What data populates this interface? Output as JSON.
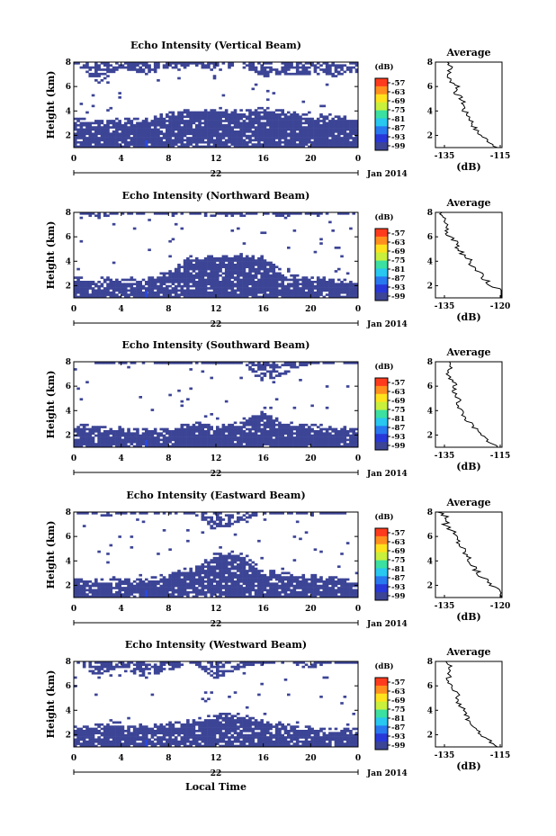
{
  "chart_data": {
    "type": "heatmap",
    "xlabel": "Local Time",
    "date_label": "Jan 2014",
    "day_label": "22",
    "x_ticks": [
      "0",
      "4",
      "8",
      "12",
      "16",
      "20",
      "0"
    ],
    "y_ticks": [
      "2",
      "4",
      "6",
      "8"
    ],
    "ylabel": "Height (km)",
    "ylim": [
      1,
      8
    ],
    "xlim": [
      0,
      24
    ],
    "colorbar": {
      "unit": "(dB)",
      "labels": [
        "-57",
        "-63",
        "-69",
        "-75",
        "-81",
        "-87",
        "-93",
        "-99"
      ],
      "colors": [
        "#ff3b1e",
        "#ff8f1e",
        "#ffe21e",
        "#c8f03c",
        "#3ce0a0",
        "#28c8f0",
        "#2878f0",
        "#2838d8",
        "#3c4496"
      ]
    },
    "panels": [
      {
        "title": "Echo Intensity (Vertical Beam)",
        "cloud": [
          [
            0,
            3.2
          ],
          [
            2,
            3.0
          ],
          [
            4,
            3.1
          ],
          [
            6,
            3.1
          ],
          [
            8,
            3.6
          ],
          [
            10,
            3.9
          ],
          [
            12,
            4.0
          ],
          [
            14,
            3.8
          ],
          [
            16,
            4.0
          ],
          [
            18,
            3.8
          ],
          [
            20,
            3.4
          ],
          [
            22,
            3.3
          ],
          [
            24,
            3.2
          ]
        ],
        "upper": [
          [
            0,
            8
          ],
          [
            2,
            6.2
          ],
          [
            4,
            7.5
          ],
          [
            6,
            7.0
          ],
          [
            8,
            7.4
          ],
          [
            10,
            7.8
          ],
          [
            12,
            7.2
          ],
          [
            14,
            7.8
          ],
          [
            16,
            6.8
          ],
          [
            18,
            7.0
          ],
          [
            20,
            7.0
          ],
          [
            22,
            6.8
          ],
          [
            24,
            7.2
          ]
        ],
        "average": {
          "title": "Average",
          "xlabel": "(dB)",
          "ticks": [
            "-135",
            "-115"
          ],
          "profile": [
            [
              8,
              -134
            ],
            [
              7.6,
              -132
            ],
            [
              7,
              -134
            ],
            [
              6.5,
              -133
            ],
            [
              6,
              -130
            ],
            [
              5.5,
              -131
            ],
            [
              5,
              -129
            ],
            [
              4.5,
              -128
            ],
            [
              4,
              -128
            ],
            [
              3.5,
              -126
            ],
            [
              3,
              -125
            ],
            [
              2.5,
              -124
            ],
            [
              2,
              -122
            ],
            [
              1.5,
              -119
            ],
            [
              1,
              -116
            ]
          ]
        }
      },
      {
        "title": "Echo Intensity (Northward Beam)",
        "cloud": [
          [
            0,
            2.5
          ],
          [
            2,
            2.2
          ],
          [
            4,
            2.3
          ],
          [
            6,
            2.3
          ],
          [
            8,
            3.0
          ],
          [
            10,
            4.2
          ],
          [
            12,
            4.3
          ],
          [
            14,
            4.3
          ],
          [
            16,
            4.2
          ],
          [
            18,
            2.6
          ],
          [
            20,
            2.5
          ],
          [
            22,
            2.3
          ],
          [
            24,
            2.2
          ]
        ],
        "upper": [
          [
            0,
            8
          ],
          [
            2,
            7.6
          ],
          [
            4,
            7.9
          ],
          [
            6,
            7.9
          ],
          [
            8,
            7.9
          ],
          [
            10,
            7.9
          ],
          [
            12,
            7.6
          ],
          [
            14,
            7.6
          ],
          [
            16,
            7.9
          ],
          [
            18,
            7.6
          ],
          [
            20,
            7.9
          ],
          [
            22,
            7.9
          ],
          [
            24,
            7.9
          ]
        ],
        "average": {
          "title": "Average",
          "xlabel": "(dB)",
          "ticks": [
            "-135",
            "-120"
          ],
          "profile": [
            [
              8,
              -136
            ],
            [
              7.5,
              -135
            ],
            [
              7,
              -134
            ],
            [
              6.5,
              -135
            ],
            [
              6,
              -133
            ],
            [
              5.5,
              -132
            ],
            [
              5,
              -131
            ],
            [
              4.5,
              -130
            ],
            [
              4,
              -128
            ],
            [
              3.5,
              -127
            ],
            [
              3,
              -125
            ],
            [
              2.5,
              -124
            ],
            [
              2,
              -122
            ],
            [
              1.5,
              -119
            ],
            [
              1,
              -117
            ]
          ]
        }
      },
      {
        "title": "Echo Intensity (Southward Beam)",
        "cloud": [
          [
            0,
            2.6
          ],
          [
            2,
            2.5
          ],
          [
            4,
            2.4
          ],
          [
            6,
            2.2
          ],
          [
            8,
            2.3
          ],
          [
            10,
            2.8
          ],
          [
            12,
            2.6
          ],
          [
            14,
            2.8
          ],
          [
            16,
            3.8
          ],
          [
            18,
            2.8
          ],
          [
            20,
            2.6
          ],
          [
            22,
            2.5
          ],
          [
            24,
            2.3
          ]
        ],
        "upper": [
          [
            0,
            8
          ],
          [
            2,
            7.9
          ],
          [
            4,
            7.9
          ],
          [
            6,
            7.9
          ],
          [
            8,
            7.9
          ],
          [
            10,
            7.9
          ],
          [
            12,
            7.9
          ],
          [
            14,
            7.9
          ],
          [
            16,
            6.4
          ],
          [
            18,
            7.0
          ],
          [
            20,
            7.9
          ],
          [
            22,
            7.9
          ],
          [
            24,
            7.9
          ]
        ],
        "average": {
          "title": "Average",
          "xlabel": "(dB)",
          "ticks": [
            "-135",
            "-115"
          ],
          "profile": [
            [
              8,
              -134
            ],
            [
              7.5,
              -133
            ],
            [
              7,
              -134
            ],
            [
              6.5,
              -132
            ],
            [
              6,
              -131
            ],
            [
              5.5,
              -132
            ],
            [
              5,
              -130
            ],
            [
              4.5,
              -130
            ],
            [
              4,
              -129
            ],
            [
              3.5,
              -128
            ],
            [
              3,
              -126
            ],
            [
              2.5,
              -124
            ],
            [
              2,
              -122
            ],
            [
              1.5,
              -119
            ],
            [
              1,
              -116
            ]
          ]
        }
      },
      {
        "title": "Echo Intensity (Eastward Beam)",
        "cloud": [
          [
            0,
            2.6
          ],
          [
            2,
            2.3
          ],
          [
            4,
            2.2
          ],
          [
            6,
            2.2
          ],
          [
            8,
            2.8
          ],
          [
            10,
            3.2
          ],
          [
            12,
            4.4
          ],
          [
            14,
            4.5
          ],
          [
            16,
            3.0
          ],
          [
            18,
            2.8
          ],
          [
            20,
            2.6
          ],
          [
            22,
            2.4
          ],
          [
            24,
            2.2
          ]
        ],
        "upper": [
          [
            0,
            8
          ],
          [
            2,
            7.4
          ],
          [
            4,
            7.9
          ],
          [
            6,
            7.9
          ],
          [
            8,
            7.9
          ],
          [
            10,
            7.9
          ],
          [
            12,
            6.4
          ],
          [
            14,
            7.2
          ],
          [
            16,
            7.9
          ],
          [
            18,
            7.9
          ],
          [
            20,
            7.9
          ],
          [
            22,
            7.9
          ],
          [
            24,
            7.9
          ]
        ],
        "average": {
          "title": "Average",
          "xlabel": "(dB)",
          "ticks": [
            "-135",
            "-120"
          ],
          "profile": [
            [
              8,
              -136
            ],
            [
              7.5,
              -134
            ],
            [
              7,
              -135
            ],
            [
              6.5,
              -133
            ],
            [
              6,
              -132
            ],
            [
              5.5,
              -131
            ],
            [
              5,
              -130
            ],
            [
              4.5,
              -129
            ],
            [
              4,
              -128
            ],
            [
              3.5,
              -127
            ],
            [
              3,
              -126
            ],
            [
              2.5,
              -124
            ],
            [
              2,
              -122
            ],
            [
              1.5,
              -120
            ],
            [
              1,
              -118
            ]
          ]
        }
      },
      {
        "title": "Echo Intensity (Westward Beam)",
        "cloud": [
          [
            0,
            2.4
          ],
          [
            2,
            2.6
          ],
          [
            4,
            2.8
          ],
          [
            6,
            2.6
          ],
          [
            8,
            2.7
          ],
          [
            10,
            3.0
          ],
          [
            12,
            3.4
          ],
          [
            14,
            3.5
          ],
          [
            16,
            3.0
          ],
          [
            18,
            2.6
          ],
          [
            20,
            2.4
          ],
          [
            22,
            2.2
          ],
          [
            24,
            2.2
          ]
        ],
        "upper": [
          [
            0,
            8
          ],
          [
            2,
            6.8
          ],
          [
            4,
            7.6
          ],
          [
            6,
            6.6
          ],
          [
            8,
            7.2
          ],
          [
            10,
            7.9
          ],
          [
            12,
            6.6
          ],
          [
            14,
            7.4
          ],
          [
            16,
            7.9
          ],
          [
            18,
            7.9
          ],
          [
            20,
            7.4
          ],
          [
            22,
            7.9
          ],
          [
            24,
            7.9
          ]
        ],
        "average": {
          "title": "Average",
          "xlabel": "(dB)",
          "ticks": [
            "-135",
            "-115"
          ],
          "profile": [
            [
              8,
              -134
            ],
            [
              7.5,
              -133
            ],
            [
              7,
              -133
            ],
            [
              6.5,
              -134
            ],
            [
              6,
              -132
            ],
            [
              5.5,
              -131
            ],
            [
              5,
              -130
            ],
            [
              4.5,
              -130
            ],
            [
              4,
              -128
            ],
            [
              3.5,
              -127
            ],
            [
              3,
              -126
            ],
            [
              2.5,
              -124
            ],
            [
              2,
              -122
            ],
            [
              1.5,
              -119
            ],
            [
              1,
              -116
            ]
          ]
        }
      }
    ]
  }
}
